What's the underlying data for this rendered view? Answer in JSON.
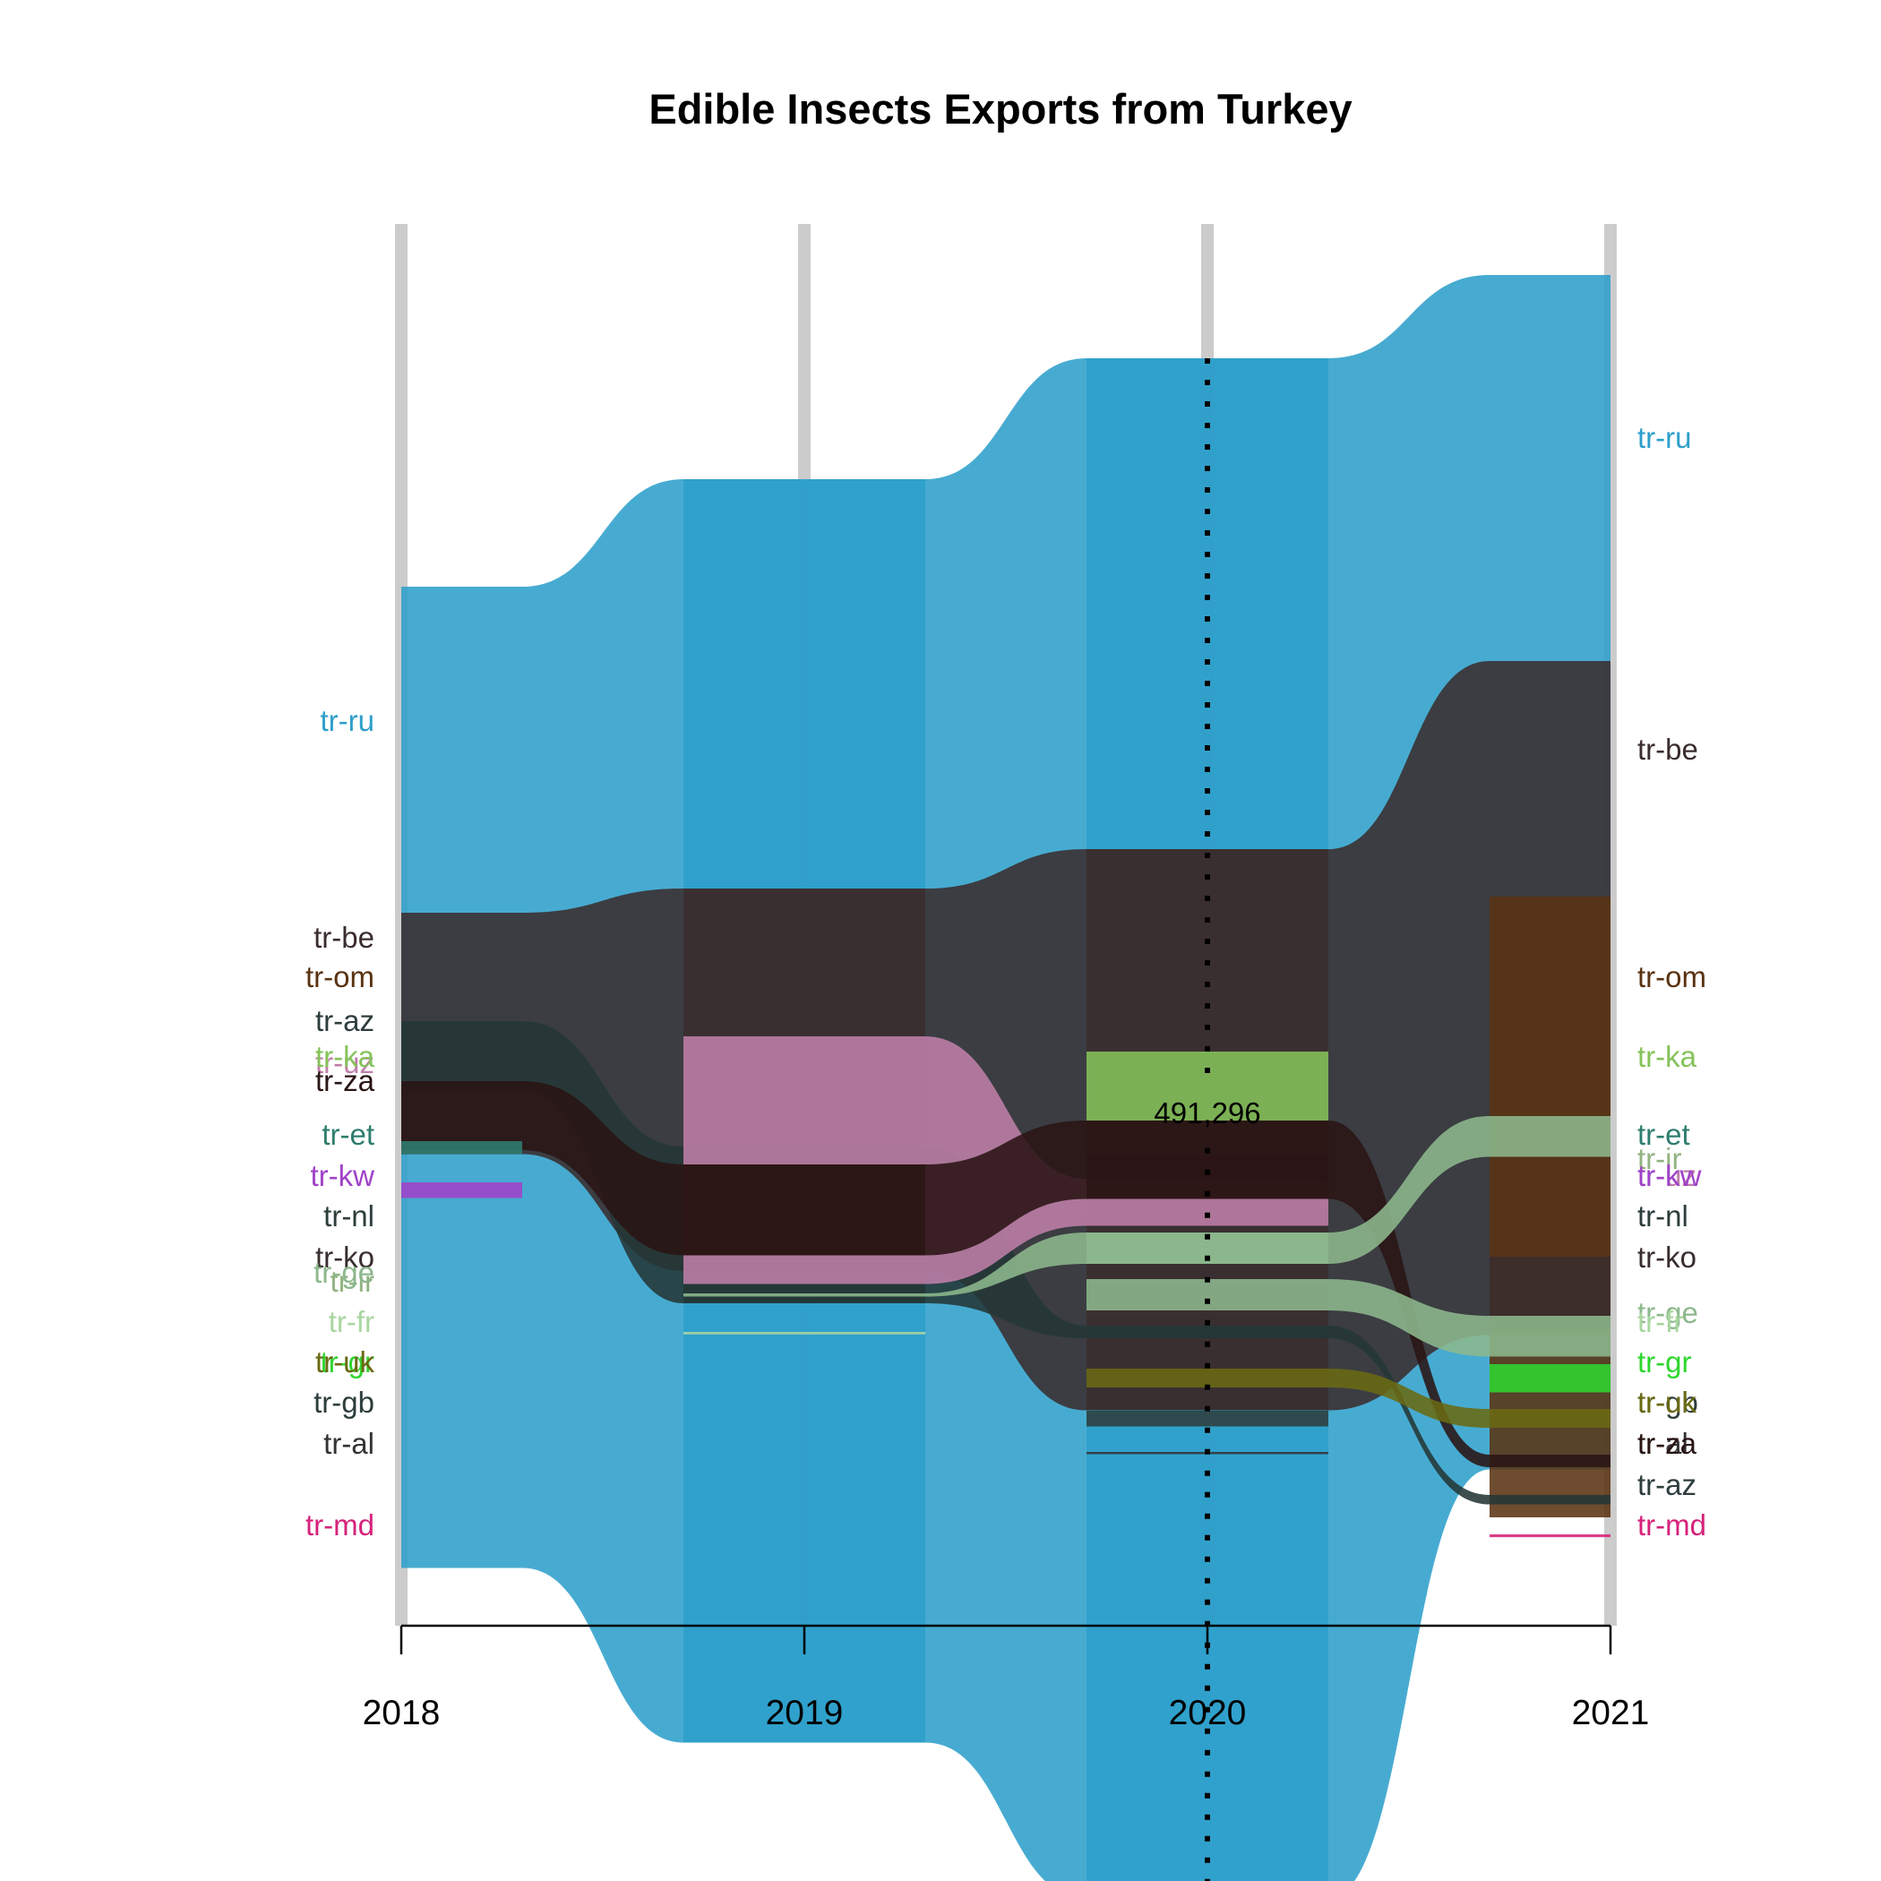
{
  "chart_data": {
    "type": "area",
    "subtype": "alluvial",
    "title": "Edible Insects Exports from Turkey",
    "xlabel": "",
    "ylabel": "",
    "x": [
      "2018",
      "2019",
      "2020",
      "2021"
    ],
    "annotation": {
      "year": "2020",
      "label": "491,296"
    },
    "series": [
      {
        "name": "tr-ru",
        "color": "#2E9FCB",
        "values": [
          313000,
          403000,
          491296,
          381000
        ]
      },
      {
        "name": "tr-be",
        "color": "#3A2D2D",
        "values": [
          77000,
          122000,
          179000,
          215000
        ]
      },
      {
        "name": "tr-om",
        "color": "#5A3312",
        "values": [
          null,
          null,
          null,
          198000
        ]
      },
      {
        "name": "tr-ka",
        "color": "#85C35A",
        "values": [
          null,
          null,
          33000,
          null
        ]
      },
      {
        "name": "tr-az",
        "color": "#243735",
        "values": [
          22000,
          50000,
          4000,
          3000
        ]
      },
      {
        "name": "tr-uz",
        "color": "#BF7FA9",
        "values": [
          null,
          79000,
          15000,
          null
        ]
      },
      {
        "name": "tr-za",
        "color": "#2A1515",
        "values": [
          22000,
          29000,
          25000,
          4000
        ]
      },
      {
        "name": "tr-et",
        "color": "#2E7D6E",
        "values": [
          4000,
          null,
          null,
          null
        ]
      },
      {
        "name": "tr-kw",
        "color": "#A042C8",
        "values": [
          5000,
          null,
          null,
          null
        ]
      },
      {
        "name": "tr-ir",
        "color": "#92B382",
        "values": [
          null,
          null,
          null,
          null
        ]
      },
      {
        "name": "tr-nl",
        "color": "#2D3D3C",
        "values": [
          null,
          null,
          null,
          null
        ]
      },
      {
        "name": "tr-ko",
        "color": "#3A2D2D",
        "values": [
          null,
          null,
          null,
          23000
        ]
      },
      {
        "name": "tr-ge",
        "color": "#8DB88D",
        "values": [
          null,
          1000,
          10000,
          13000
        ]
      },
      {
        "name": "tr-fr",
        "color": "#A9D6A0",
        "values": [
          null,
          800,
          null,
          null
        ]
      },
      {
        "name": "tr-gr",
        "color": "#2FD62F",
        "values": [
          null,
          null,
          null,
          9000
        ]
      },
      {
        "name": "tr-uk",
        "color": "#6A6A12",
        "values": [
          null,
          null,
          6000,
          6000
        ]
      },
      {
        "name": "tr-gb",
        "color": "#2D3D3C",
        "values": [
          null,
          null,
          5000,
          null
        ]
      },
      {
        "name": "tr-al",
        "color": "#333333",
        "values": [
          null,
          null,
          700,
          null
        ]
      },
      {
        "name": "tr-md",
        "color": "#D6227A",
        "values": [
          null,
          null,
          null,
          900
        ]
      }
    ],
    "left_labels": [
      {
        "name": "tr-ru",
        "color": "#2E9FCB"
      },
      {
        "name": "tr-be",
        "color": "#3A2D2D"
      },
      {
        "name": "tr-om",
        "color": "#5A3312"
      },
      {
        "name": "tr-az",
        "color": "#2D3D3C"
      },
      {
        "name": "tr-uz",
        "color": "#BF7FA9"
      },
      {
        "name": "tr-ka",
        "color": "#85C35A"
      },
      {
        "name": "tr-za",
        "color": "#2A1515"
      },
      {
        "name": "tr-et",
        "color": "#2E7D6E"
      },
      {
        "name": "tr-kw",
        "color": "#A042C8"
      },
      {
        "name": "tr-nl",
        "color": "#2D3D3C"
      },
      {
        "name": "tr-ko",
        "color": "#3A2D2D"
      },
      {
        "name": "tr-ir",
        "color": "#92B382"
      },
      {
        "name": "tr-ge",
        "color": "#8DB88D"
      },
      {
        "name": "tr-fr",
        "color": "#A9D6A0"
      },
      {
        "name": "tr-gr",
        "color": "#2FD62F"
      },
      {
        "name": "tr-uk",
        "color": "#6A6A12"
      },
      {
        "name": "tr-gb",
        "color": "#2D3D3C"
      },
      {
        "name": "tr-al",
        "color": "#333333"
      },
      {
        "name": "tr-md",
        "color": "#D6227A"
      }
    ],
    "right_labels": [
      {
        "name": "tr-ru",
        "color": "#2E9FCB"
      },
      {
        "name": "tr-be",
        "color": "#3A2D2D"
      },
      {
        "name": "tr-om",
        "color": "#5A3312"
      },
      {
        "name": "tr-ka",
        "color": "#85C35A"
      },
      {
        "name": "tr-et",
        "color": "#2E7D6E"
      },
      {
        "name": "tr-ir",
        "color": "#92B382"
      },
      {
        "name": "tr-uz",
        "color": "#BF7FA9"
      },
      {
        "name": "tr-kw",
        "color": "#A042C8"
      },
      {
        "name": "tr-nl",
        "color": "#2D3D3C"
      },
      {
        "name": "tr-ko",
        "color": "#3A2D2D"
      },
      {
        "name": "tr-ge",
        "color": "#8DB88D"
      },
      {
        "name": "tr-fr",
        "color": "#A9D6A0"
      },
      {
        "name": "tr-gr",
        "color": "#2FD62F"
      },
      {
        "name": "tr-gb",
        "color": "#2D3D3C"
      },
      {
        "name": "tr-uk",
        "color": "#6A6A12"
      },
      {
        "name": "tr-al",
        "color": "#333333"
      },
      {
        "name": "tr-za",
        "color": "#2A1515"
      },
      {
        "name": "tr-az",
        "color": "#2D3D3C"
      },
      {
        "name": "tr-md",
        "color": "#D6227A"
      }
    ]
  }
}
